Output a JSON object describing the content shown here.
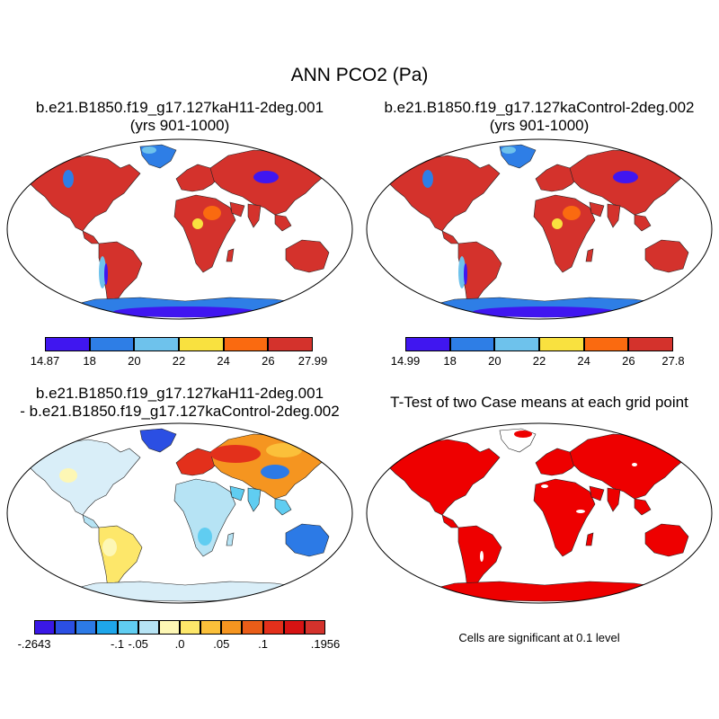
{
  "title": "ANN PCO2 (Pa)",
  "panels": {
    "top_left": {
      "line1": "b.e21.B1850.f19_g17.127kaH11-2deg.001",
      "line2": "(yrs 901-1000)",
      "colorbar": {
        "colors": [
          "#4016f0",
          "#2e7ee6",
          "#6ec2ec",
          "#f9e13f",
          "#fa6a10",
          "#d4322c"
        ],
        "tick_labels": [
          "14.87",
          "18",
          "20",
          "22",
          "24",
          "26",
          "27.99"
        ]
      }
    },
    "top_right": {
      "line1": "b.e21.B1850.f19_g17.127kaControl-2deg.002",
      "line2": "(yrs 901-1000)",
      "colorbar": {
        "colors": [
          "#4016f0",
          "#2e7ee6",
          "#6ec2ec",
          "#f9e13f",
          "#fa6a10",
          "#d4322c"
        ],
        "tick_labels": [
          "14.99",
          "18",
          "20",
          "22",
          "24",
          "26",
          "27.8"
        ]
      }
    },
    "bottom_left": {
      "line1": "b.e21.B1850.f19_g17.127kaH11-2deg.001",
      "line2": "- b.e21.B1850.f19_g17.127kaControl-2deg.002",
      "colorbar": {
        "colors": [
          "#3a18e6",
          "#2b4fe3",
          "#2c7ae6",
          "#1ea6ea",
          "#60cdf1",
          "#b6e3f4",
          "#fdf7b5",
          "#fde76a",
          "#fbc03a",
          "#f59520",
          "#e95d18",
          "#e3301b",
          "#d61313",
          "#d4322c"
        ],
        "tick_labels": [
          {
            "label": "-.2643",
            "edge": 0
          },
          {
            "label": "-.1",
            "edge": 4
          },
          {
            "label": "-.05",
            "edge": 5
          },
          {
            "label": ".0",
            "edge": 7
          },
          {
            "label": ".05",
            "edge": 9
          },
          {
            "label": ".1",
            "edge": 11
          },
          {
            "label": ".1956",
            "edge": 14
          }
        ]
      }
    },
    "bottom_right": {
      "line1": "T-Test of two Case means at each grid point",
      "note": "Cells are significant at 0.1 level",
      "fill_color": "#ee0000"
    }
  }
}
